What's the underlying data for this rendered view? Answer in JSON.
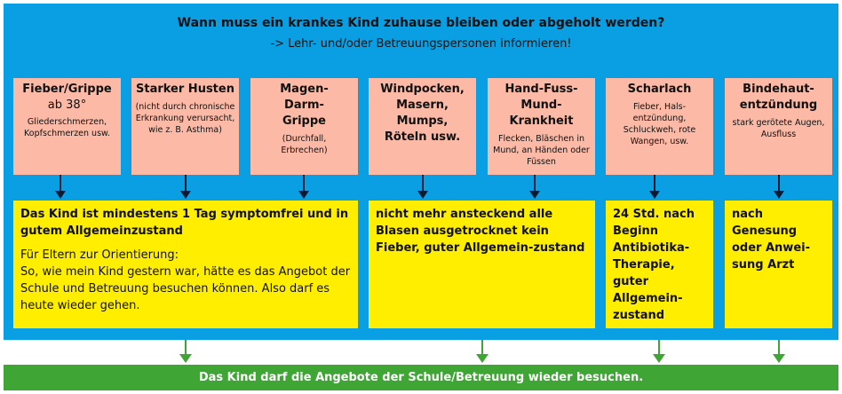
{
  "title": "Wann muss ein krankes Kind zuhause bleiben oder abgeholt werden?",
  "subtitle": "-> Lehr- und/oder Betreuungspersonen informieren!",
  "colors": {
    "frame": "#0a9fe2",
    "symptom_box": "#fbb9a6",
    "condition_box": "#ffee00",
    "result_bar": "#3fa535"
  },
  "symptoms": [
    {
      "title": "Fieber/Grippe",
      "sub": "ab 38°",
      "detail": "Gliederschmerzen, Kopfschmerzen usw."
    },
    {
      "title": "Starker Husten",
      "sub": "",
      "detail": "(nicht durch chronische Erkrankung verursacht, wie z. B. Asthma)"
    },
    {
      "title": "Magen-Darm-Grippe",
      "sub": "",
      "detail": "(Durchfall, Erbrechen)"
    },
    {
      "title": "Windpocken, Masern, Mumps, Röteln usw.",
      "sub": "",
      "detail": ""
    },
    {
      "title": "Hand-Fuss-Mund-Krankheit",
      "sub": "",
      "detail": "Flecken, Bläschen in Mund, an Händen oder Füssen"
    },
    {
      "title": "Scharlach",
      "sub": "",
      "detail": "Fieber, Hals-entzündung, Schluckweh, rote Wangen, usw."
    },
    {
      "title": "Bindehaut-entzündung",
      "sub": "",
      "detail": "stark gerötete Augen, Ausfluss"
    }
  ],
  "conditions": [
    {
      "bold": "Das Kind ist mindestens 1 Tag symptomfrei und in gutem Allgemeinzustand",
      "note_label": "Für Eltern zur Orientierung:",
      "note": "So, wie mein Kind gestern war, hätte es das Angebot der Schule und Betreuung besuchen können. Also darf es heute wieder gehen."
    },
    {
      "bold": "nicht mehr ansteckend alle Blasen ausgetrocknet kein Fieber, guter Allgemein-zustand"
    },
    {
      "bold": "24 Std. nach Beginn Antibiotika-Therapie, guter Allgemein-zustand"
    },
    {
      "bold": "nach Genesung oder Anwei-sung Arzt"
    }
  ],
  "result": "Das Kind darf die Angebote der Schule/Betreuung wieder besuchen."
}
